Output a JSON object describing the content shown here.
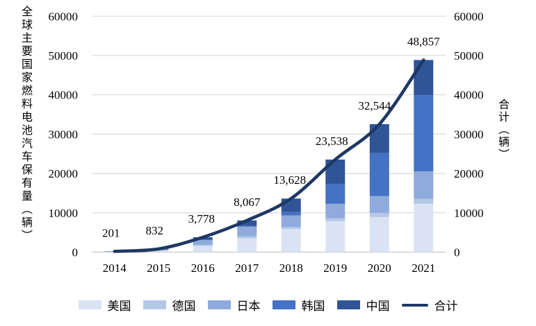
{
  "titles": {
    "left_axis": "全球主要国家燃料电池汽车保有量（辆）",
    "right_axis": "合计（辆）"
  },
  "colors": {
    "usa": "#DAE3F3",
    "germany": "#B4C7E7",
    "japan": "#8FAADC",
    "korea": "#4472C4",
    "china": "#2F5597",
    "total_line": "#1F3864",
    "gridline": "#D9D9D9",
    "axis_line": "#C6C6C6"
  },
  "chart_data": {
    "type": "bar",
    "subtype": "stacked-bars-with-smoothed-total-line",
    "categories": [
      "2014",
      "2015",
      "2016",
      "2017",
      "2018",
      "2019",
      "2020",
      "2021"
    ],
    "series": [
      {
        "name": "美国",
        "key": "usa",
        "type": "bar",
        "color": "#DAE3F3",
        "values": [
          127,
          412,
          1560,
          3532,
          5899,
          7880,
          8931,
          12283
        ]
      },
      {
        "name": "德国",
        "key": "germany",
        "type": "bar",
        "color": "#B4C7E7",
        "values": [
          26,
          52,
          270,
          500,
          486,
          762,
          1045,
          1261
        ]
      },
      {
        "name": "日本",
        "key": "japan",
        "type": "bar",
        "color": "#8FAADC",
        "values": [
          33,
          290,
          1230,
          2440,
          2926,
          3653,
          4310,
          6971
        ]
      },
      {
        "name": "韩国",
        "key": "korea",
        "type": "bar",
        "color": "#4472C4",
        "values": [
          15,
          68,
          89,
          170,
          889,
          5068,
          10906,
          19404
        ]
      },
      {
        "name": "中国",
        "key": "china",
        "type": "bar",
        "color": "#2F5597",
        "values": [
          0,
          10,
          629,
          1425,
          3428,
          6175,
          7352,
          8938
        ]
      },
      {
        "name": "合计",
        "key": "total",
        "type": "line",
        "color": "#1F3864",
        "values": [
          201,
          832,
          3778,
          8067,
          13628,
          23538,
          32544,
          48857
        ]
      }
    ],
    "line_point_labels": [
      "201",
      "832",
      "3,778",
      "8,067",
      "13,628",
      "23,538",
      "32,544",
      "48,857"
    ],
    "ylabel_left": "全球主要国家燃料电池汽车保有量（辆）",
    "ylabel_right": "合计（辆）",
    "ylim": [
      0,
      60000
    ],
    "ytick_step": 10000,
    "ytick_labels_left": [
      "0",
      "10000",
      "20000",
      "30000",
      "40000",
      "50000",
      "60000"
    ],
    "ytick_labels_right": [
      "0",
      "10000",
      "20000",
      "30000",
      "40000",
      "50000",
      "60000"
    ],
    "grid": true,
    "legend_position": "bottom",
    "note": "Totals are printed on the chart; per-country stacked segment values are estimated from bar segment heights and sum exactly to each labeled total."
  },
  "legend": {
    "items": [
      {
        "label": "美国",
        "key": "usa",
        "kind": "swatch",
        "color": "#DAE3F3"
      },
      {
        "label": "德国",
        "key": "germany",
        "kind": "swatch",
        "color": "#B4C7E7"
      },
      {
        "label": "日本",
        "key": "japan",
        "kind": "swatch",
        "color": "#8FAADC"
      },
      {
        "label": "韩国",
        "key": "korea",
        "kind": "swatch",
        "color": "#4472C4"
      },
      {
        "label": "中国",
        "key": "china",
        "kind": "swatch",
        "color": "#2F5597"
      },
      {
        "label": "合计",
        "key": "total",
        "kind": "line",
        "color": "#1F3864"
      }
    ]
  }
}
